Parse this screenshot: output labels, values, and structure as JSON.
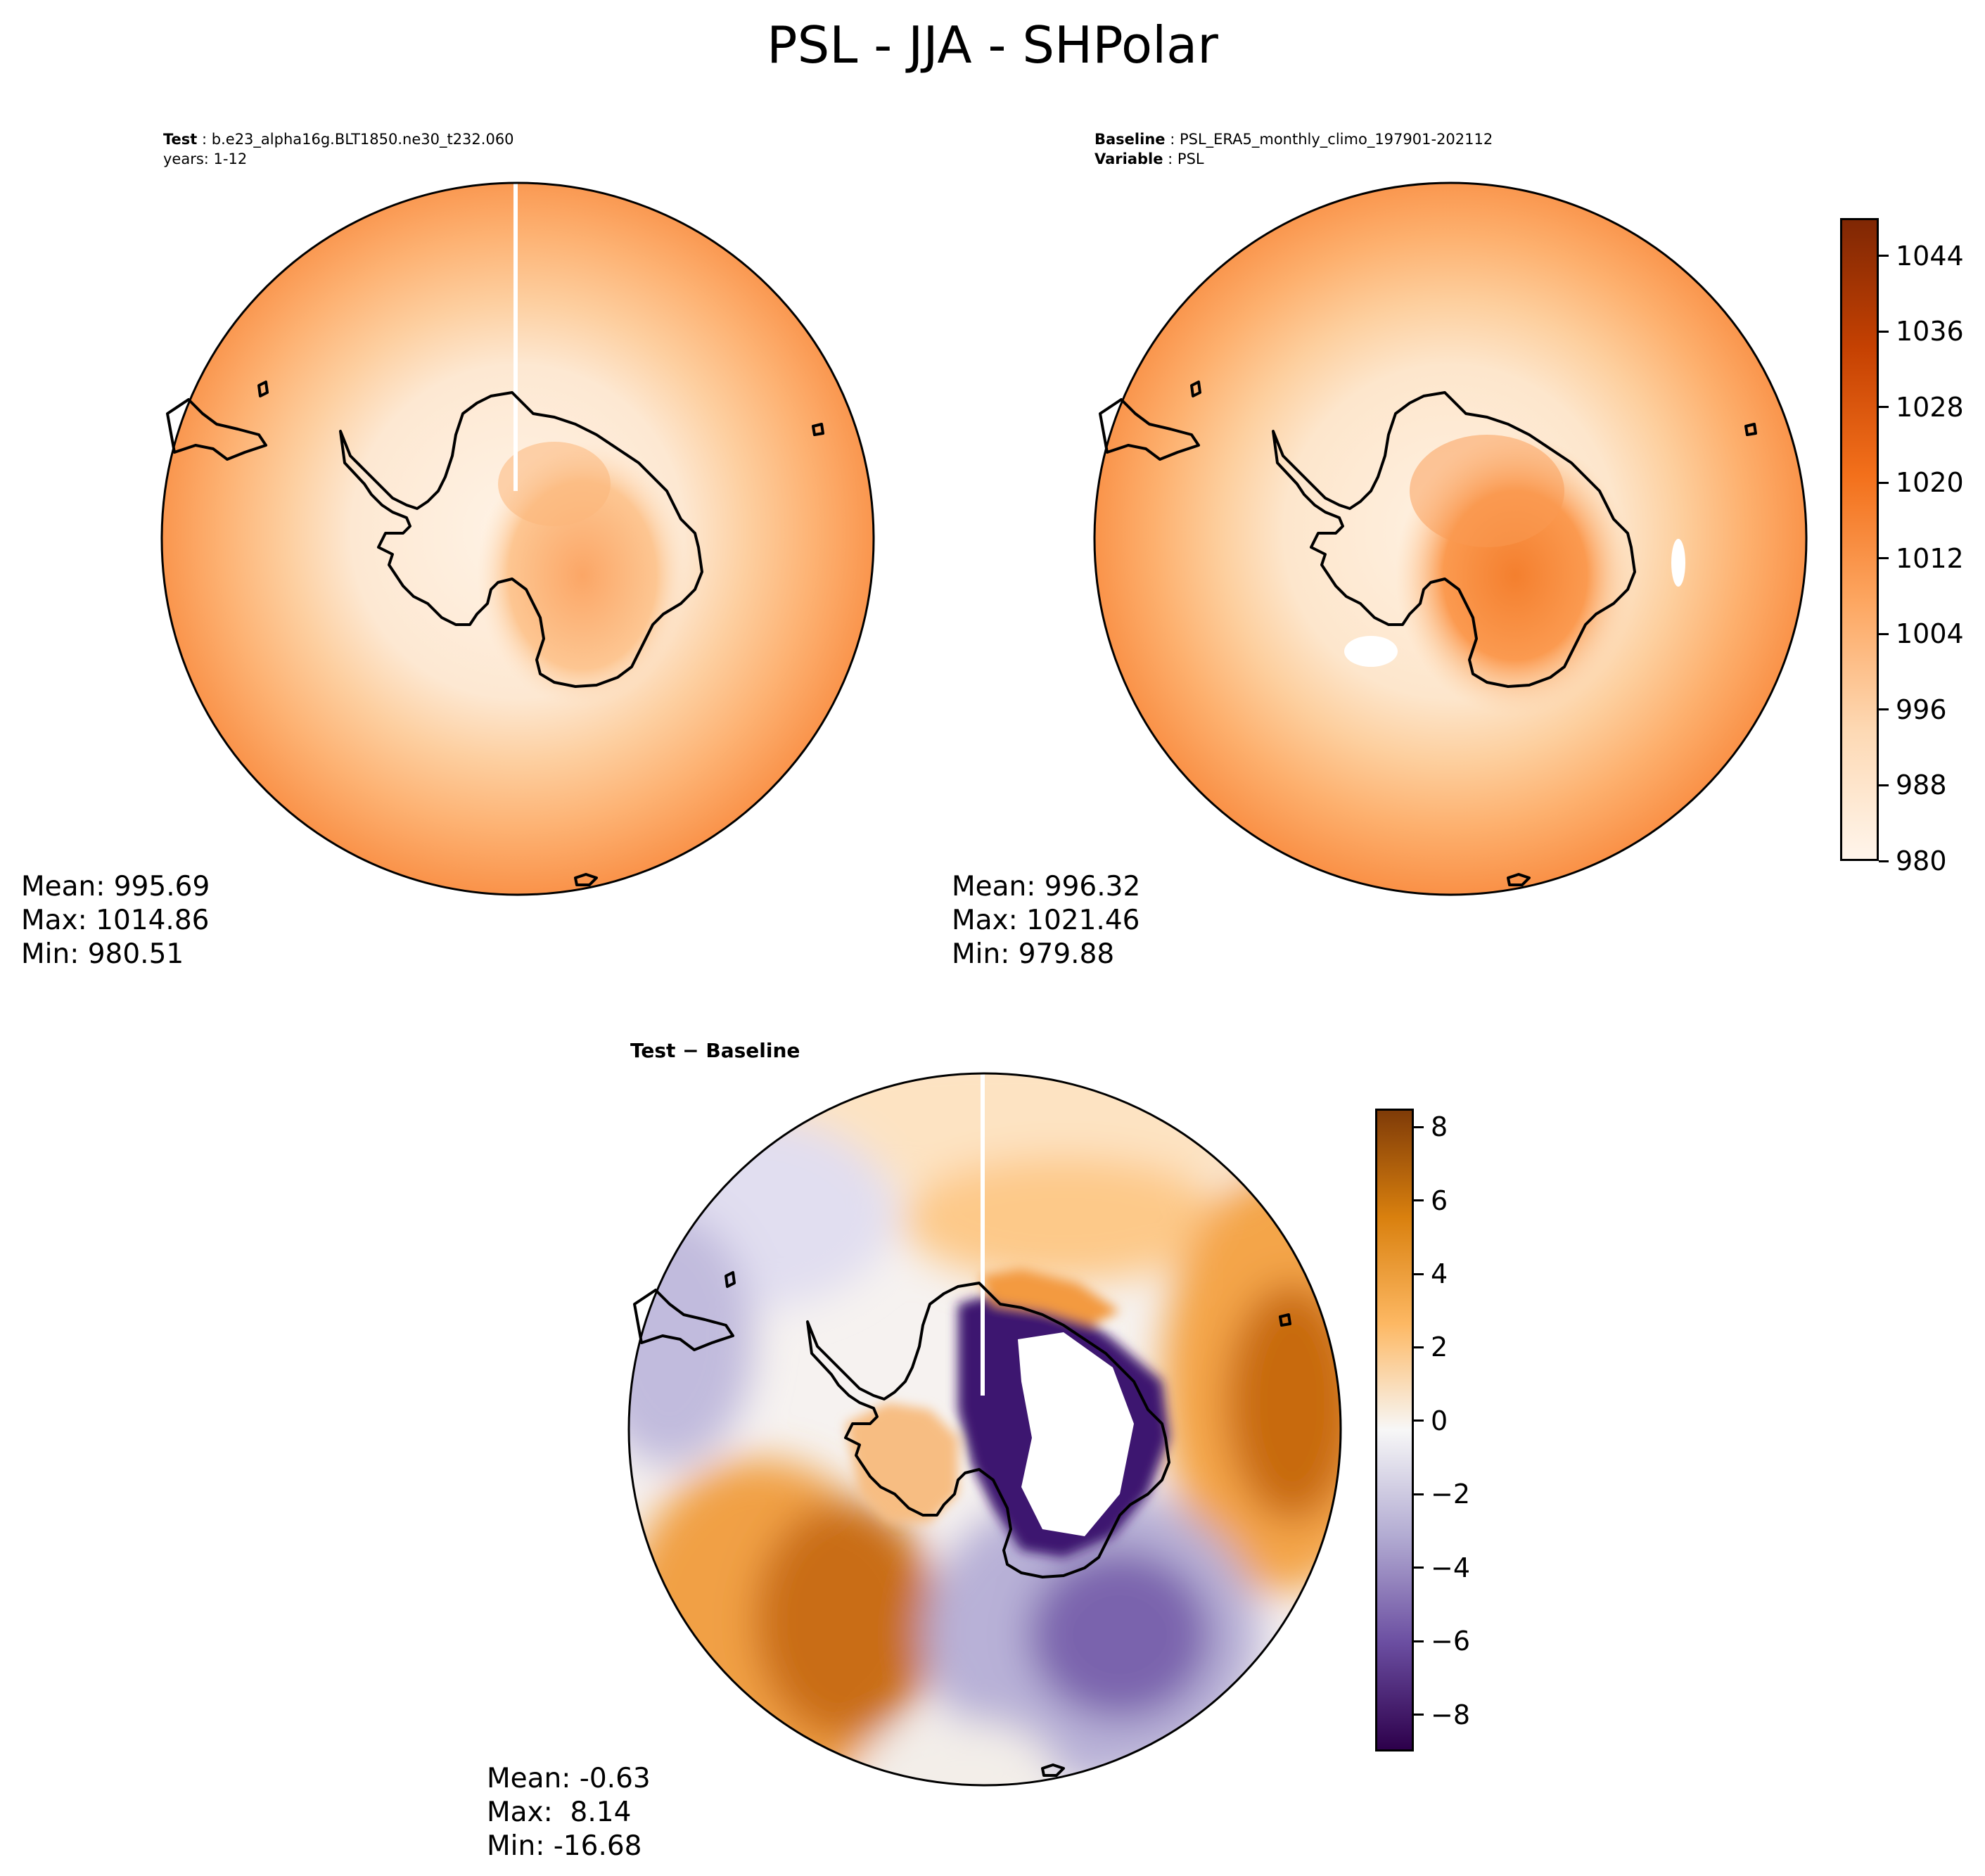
{
  "figure": {
    "title": "PSL - JJA - SHPolar"
  },
  "panels": {
    "test": {
      "header_label": "Test",
      "header_value": "b.e23_alpha16g.BLT1850.ne30_t232.060",
      "header_line2": "years: 1-12",
      "stats": {
        "mean": "Mean: 995.69",
        "max": "Max: 1014.86",
        "min": "Min: 980.51"
      }
    },
    "baseline": {
      "header_label": "Baseline",
      "header_value": "PSL_ERA5_monthly_climo_197901-202112",
      "header_label2": "Variable",
      "header_value2": "PSL",
      "stats": {
        "mean": "Mean: 996.32",
        "max": "Max: 1021.46",
        "min": "Min: 979.88"
      }
    },
    "diff": {
      "header": "Test − Baseline",
      "stats": {
        "mean": "Mean: -0.63",
        "max": "Max:  8.14",
        "min": "Min: -16.68"
      }
    }
  },
  "colorbars": {
    "psl": {
      "range": [
        980,
        1048
      ],
      "ticks": [
        "980",
        "988",
        "996",
        "1004",
        "1012",
        "1020",
        "1028",
        "1036",
        "1044"
      ],
      "tick_values": [
        980,
        988,
        996,
        1004,
        1012,
        1020,
        1028,
        1036,
        1044
      ],
      "colors": [
        "#fff5eb",
        "#fdd9b4",
        "#fda762",
        "#f3701b",
        "#c54102",
        "#7f2704"
      ]
    },
    "diff": {
      "range": [
        -9,
        8.5
      ],
      "ticks": [
        "8",
        "6",
        "4",
        "2",
        "0",
        "−2",
        "−4",
        "−6",
        "−8"
      ],
      "tick_values": [
        8,
        6,
        4,
        2,
        0,
        -2,
        -4,
        -6,
        -8
      ],
      "colors": [
        "#2d004b",
        "#6b4ea1",
        "#b2abd2",
        "#f7f7f7",
        "#fdb863",
        "#d9800e",
        "#7f3b08"
      ]
    }
  }
}
